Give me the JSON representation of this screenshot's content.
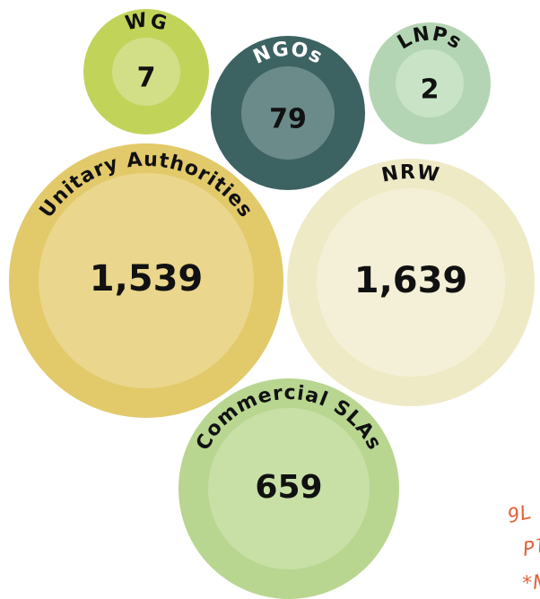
{
  "chart_data": {
    "type": "bubble",
    "categories": [
      "WG",
      "NGOs",
      "LNPs",
      "Unitary Authorities",
      "NRW",
      "Commercial SLAs"
    ],
    "values": [
      7,
      79,
      2,
      1539,
      1639,
      659
    ],
    "value_labels": [
      "7",
      "79",
      "2",
      "1,539",
      "1,639",
      "659"
    ],
    "colors": [
      "#c2d35a",
      "#3d6262",
      "#b3d5b3",
      "#e2c96a",
      "#eeeac6",
      "#b8d690"
    ],
    "inner_colors": [
      "#d3df86",
      "#6b8b8a",
      "#c9e3c6",
      "#ead68c",
      "#f4f0d7",
      "#c8e0a6"
    ],
    "label_colors": [
      "#111111",
      "#ffffff",
      "#111111",
      "#111111",
      "#111111",
      "#111111"
    ],
    "annotations": [
      "9L",
      "Pl",
      "*N"
    ]
  }
}
